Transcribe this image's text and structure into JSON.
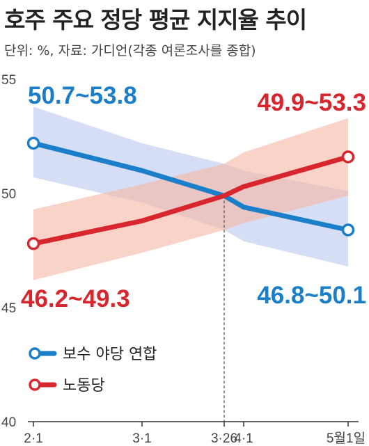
{
  "chart_data": {
    "type": "line",
    "title": "호주 주요 정당 평균 지지율 추이",
    "subtitle": "단위: %, 자료: 가디언(각종 여론조사를 종합)",
    "categories": [
      "2·1",
      "3·1",
      "3·26",
      "4·1",
      "5월1일"
    ],
    "ylim": [
      40,
      55
    ],
    "yticks": [
      40,
      45,
      50,
      55
    ],
    "reference_line_at": "3·26",
    "legend_position": "bottom-left",
    "series": [
      {
        "name": "보수 야당 연합",
        "color": "#1a7fc8",
        "band_color": "#b9c8ee",
        "values": [
          52.2,
          51.0,
          49.9,
          49.4,
          48.4
        ],
        "band_lower": [
          50.7,
          49.6,
          48.4,
          47.9,
          46.8
        ],
        "band_upper": [
          53.8,
          52.2,
          51.3,
          51.0,
          50.1
        ],
        "start_range_label": "50.7~53.8",
        "end_range_label": "46.8~50.1"
      },
      {
        "name": "노동당",
        "color": "#d8262f",
        "band_color": "#f6b6a3",
        "values": [
          47.8,
          48.8,
          49.9,
          50.3,
          51.6
        ],
        "band_lower": [
          46.2,
          47.4,
          48.4,
          48.7,
          49.9
        ],
        "band_upper": [
          49.3,
          50.4,
          51.3,
          51.8,
          53.3
        ],
        "start_range_label": "46.2~49.3",
        "end_range_label": "49.9~53.3"
      }
    ]
  }
}
